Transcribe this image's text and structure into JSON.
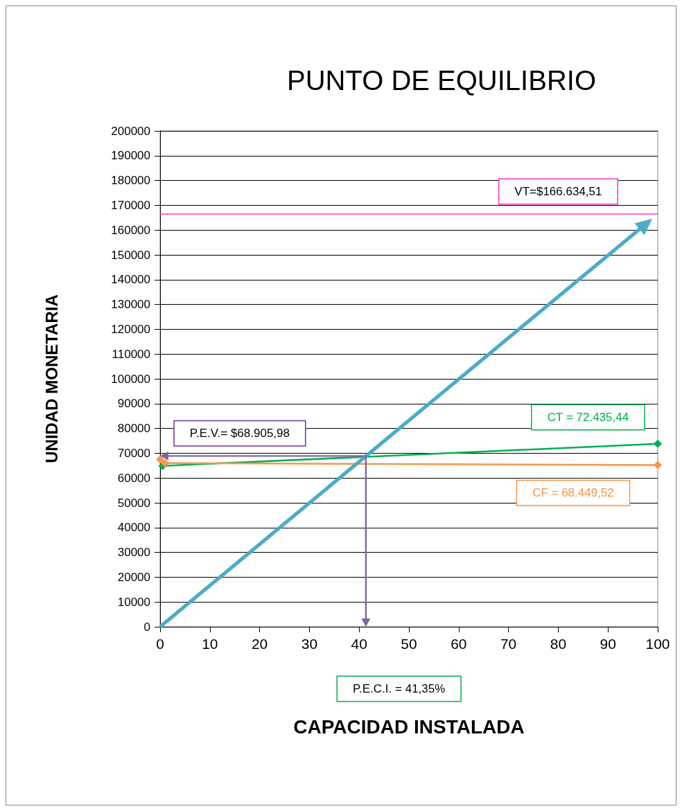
{
  "chart_data": {
    "type": "line",
    "title": "PUNTO DE EQUILIBRIO",
    "xlabel": "CAPACIDAD INSTALADA",
    "ylabel": "UNIDAD MONETARIA",
    "xlim": [
      0,
      100
    ],
    "xticks": [
      0,
      10,
      20,
      30,
      40,
      50,
      60,
      70,
      80,
      90,
      100
    ],
    "ylim": [
      0,
      200000
    ],
    "yticks": [
      0,
      10000,
      20000,
      30000,
      40000,
      50000,
      60000,
      70000,
      80000,
      90000,
      100000,
      110000,
      120000,
      130000,
      140000,
      150000,
      160000,
      170000,
      180000,
      190000,
      200000
    ],
    "grid": "y",
    "series": [
      {
        "name": "CT = 72.435,44",
        "color": "#00b050",
        "x": [
          0.5,
          100
        ],
        "values": [
          64900,
          73800
        ],
        "marker": "diamond"
      },
      {
        "name": "CF = 68.449,52",
        "color": "#f79646",
        "x": [
          0,
          1,
          100
        ],
        "values": [
          67500,
          66000,
          65200
        ],
        "marker": "diamond"
      }
    ],
    "annotations": [
      "P.E.V.= $68.905,98",
      "P.E.C.I. = 41,35%"
    ],
    "ref_lines": [
      {
        "axis": "y",
        "value": 166634.51,
        "label": "VT=$166.634,51",
        "color": "#ff33cc"
      }
    ]
  }
}
